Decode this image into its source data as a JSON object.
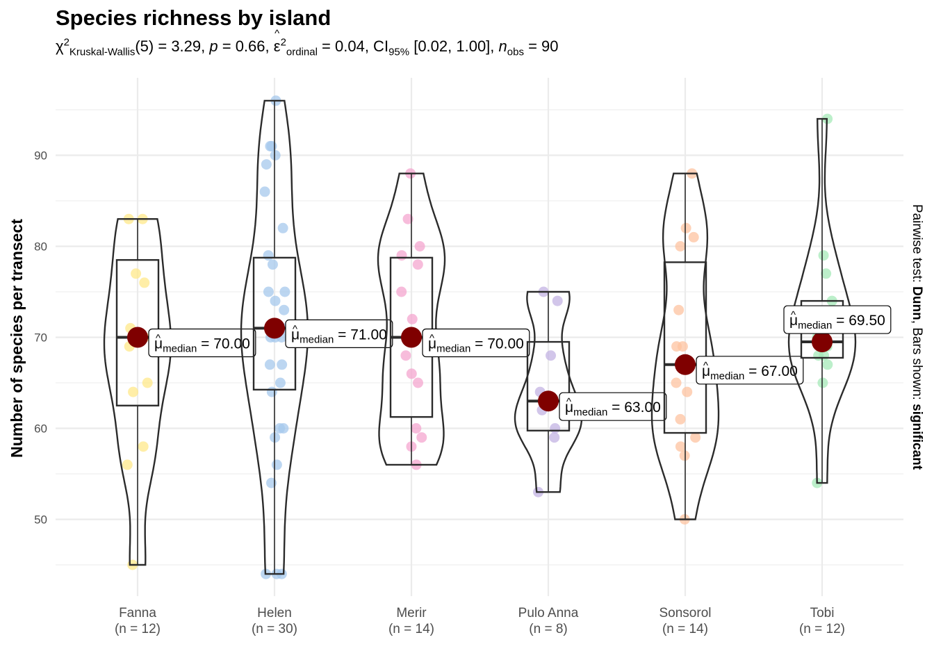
{
  "title": "Species richness by island",
  "subtitle": {
    "chi": "χ",
    "chi_sup": "2",
    "test_sub": "Kruskal-Wallis",
    "df": "(5) = 3.29, ",
    "p_sym": "p",
    "p_val": " = 0.66, ",
    "eps": "ε",
    "eps_sup": "2",
    "eps_sub": "ordinal",
    "eps_val": " = 0.04, CI",
    "ci_sub": "95%",
    "ci_val": " [0.02, 1.00], ",
    "n_sym": "n",
    "n_sub": "obs",
    "n_val": " = 90"
  },
  "caption_right": {
    "prefix": "Pairwise test: ",
    "test": "Dunn",
    "middle": ", Bars shown: ",
    "shown": "significant"
  },
  "label_mu": "μ",
  "label_sub": "median",
  "colors": {
    "median_point": "#7f0000",
    "grid": "#e5e5e5",
    "outline": "#2b2b2b",
    "Fanna": "#ffe88a",
    "Helen": "#a6c8ec",
    "Merir": "#f4a6cf",
    "Pulo Anna": "#c3b3e3",
    "Sonsorol": "#fdc3a0",
    "Tobi": "#a6e9b8"
  },
  "chart_data": {
    "type": "violin-box",
    "ylabel": "Number of species per transect",
    "xlabel": "",
    "ylim": [
      41,
      98
    ],
    "yticks": [
      50,
      60,
      70,
      80,
      90
    ],
    "grid": true,
    "groups": [
      {
        "name": "Fanna",
        "n_label": "(n = 12)",
        "median": 70.0,
        "median_label": "70.00",
        "q1": 62.5,
        "q3": 78.5,
        "min": 45,
        "max": 83,
        "points": [
          83,
          83,
          77,
          76,
          71,
          70,
          69,
          65,
          64,
          58,
          56,
          45
        ]
      },
      {
        "name": "Helen",
        "n_label": "(n = 30)",
        "median": 71.0,
        "median_label": "71.00",
        "q1": 64.25,
        "q3": 78.75,
        "min": 44,
        "max": 96,
        "points": [
          96,
          91,
          91,
          90,
          89,
          86,
          82,
          79,
          78,
          75,
          75,
          74,
          73,
          71,
          71,
          70,
          70,
          70,
          67,
          67,
          65,
          64,
          60,
          60,
          59,
          56,
          54,
          44,
          44,
          44
        ]
      },
      {
        "name": "Merir",
        "n_label": "(n = 14)",
        "median": 70.0,
        "median_label": "70.00",
        "q1": 61.25,
        "q3": 78.75,
        "min": 56,
        "max": 88,
        "points": [
          88,
          83,
          80,
          79,
          78,
          75,
          72,
          68,
          66,
          65,
          60,
          59,
          58,
          56
        ]
      },
      {
        "name": "Pulo Anna",
        "n_label": "(n = 8)",
        "median": 63.0,
        "median_label": "63.00",
        "q1": 59.75,
        "q3": 69.5,
        "min": 53,
        "max": 75,
        "points": [
          75,
          74,
          68,
          64,
          62,
          60,
          59,
          53
        ]
      },
      {
        "name": "Sonsorol",
        "n_label": "(n = 14)",
        "median": 67.0,
        "median_label": "67.00",
        "q1": 59.5,
        "q3": 78.25,
        "min": 50,
        "max": 88,
        "points": [
          88,
          82,
          81,
          80,
          73,
          69,
          69,
          65,
          64,
          61,
          59,
          58,
          57,
          50
        ]
      },
      {
        "name": "Tobi",
        "n_label": "(n = 12)",
        "median": 69.5,
        "median_label": "69.50",
        "q1": 67.75,
        "q3": 74.0,
        "min": 54,
        "max": 94,
        "points": [
          94,
          79,
          77,
          74,
          72,
          70,
          69,
          68,
          68,
          67,
          65,
          54
        ]
      }
    ]
  }
}
